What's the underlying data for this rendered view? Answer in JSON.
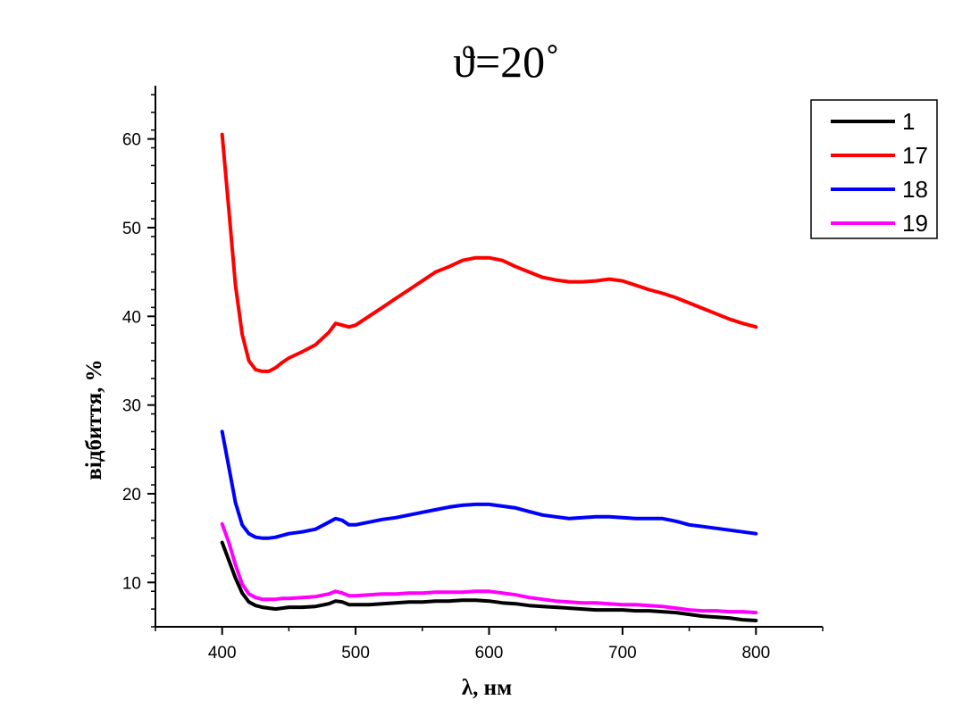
{
  "chart_data": {
    "type": "line",
    "title": "ϑ=20˚",
    "xlabel": "λ, нм",
    "ylabel": "відбиття, %",
    "xlim": [
      350,
      850
    ],
    "ylim": [
      5,
      66
    ],
    "x_ticks": [
      400,
      500,
      600,
      700,
      800
    ],
    "y_ticks": [
      10,
      20,
      30,
      40,
      50,
      60
    ],
    "grid": false,
    "legend_position": "top-right",
    "x": [
      400,
      405,
      410,
      415,
      420,
      425,
      430,
      435,
      440,
      445,
      450,
      460,
      470,
      480,
      485,
      490,
      495,
      500,
      510,
      520,
      530,
      540,
      550,
      560,
      570,
      580,
      590,
      600,
      610,
      620,
      630,
      640,
      650,
      660,
      670,
      680,
      690,
      700,
      710,
      720,
      730,
      740,
      750,
      760,
      770,
      780,
      790,
      800
    ],
    "series": [
      {
        "name": "1",
        "color": "#000000",
        "values": [
          14.5,
          12.5,
          10.5,
          8.8,
          7.8,
          7.4,
          7.2,
          7.1,
          7.0,
          7.1,
          7.2,
          7.2,
          7.3,
          7.6,
          7.9,
          7.8,
          7.5,
          7.5,
          7.5,
          7.6,
          7.7,
          7.8,
          7.8,
          7.9,
          7.9,
          8.0,
          8.0,
          7.9,
          7.7,
          7.6,
          7.4,
          7.3,
          7.2,
          7.1,
          7.0,
          6.9,
          6.9,
          6.9,
          6.8,
          6.8,
          6.7,
          6.6,
          6.4,
          6.2,
          6.1,
          6.0,
          5.8,
          5.7
        ]
      },
      {
        "name": "17",
        "color": "#ff0000",
        "values": [
          60.5,
          52.0,
          43.5,
          38.0,
          35.0,
          34.0,
          33.8,
          33.8,
          34.2,
          34.8,
          35.3,
          36.0,
          36.8,
          38.2,
          39.2,
          39.0,
          38.8,
          39.0,
          40.0,
          41.0,
          42.0,
          43.0,
          44.0,
          45.0,
          45.6,
          46.3,
          46.6,
          46.6,
          46.3,
          45.6,
          45.0,
          44.4,
          44.1,
          43.9,
          43.9,
          44.0,
          44.2,
          44.0,
          43.5,
          43.0,
          42.6,
          42.1,
          41.5,
          40.9,
          40.3,
          39.7,
          39.2,
          38.8
        ]
      },
      {
        "name": "18",
        "color": "#0000ff",
        "values": [
          27.0,
          23.0,
          19.0,
          16.5,
          15.5,
          15.1,
          15.0,
          15.0,
          15.1,
          15.3,
          15.5,
          15.7,
          16.0,
          16.8,
          17.2,
          17.0,
          16.5,
          16.5,
          16.8,
          17.1,
          17.3,
          17.6,
          17.9,
          18.2,
          18.5,
          18.7,
          18.8,
          18.8,
          18.6,
          18.4,
          18.0,
          17.6,
          17.4,
          17.2,
          17.3,
          17.4,
          17.4,
          17.3,
          17.2,
          17.2,
          17.2,
          16.9,
          16.5,
          16.3,
          16.1,
          15.9,
          15.7,
          15.5
        ]
      },
      {
        "name": "19",
        "color": "#ff00ff",
        "values": [
          16.6,
          14.5,
          12.0,
          9.8,
          8.7,
          8.3,
          8.1,
          8.1,
          8.1,
          8.2,
          8.2,
          8.3,
          8.4,
          8.7,
          9.0,
          8.8,
          8.5,
          8.5,
          8.6,
          8.7,
          8.7,
          8.8,
          8.8,
          8.9,
          8.9,
          8.9,
          9.0,
          9.0,
          8.8,
          8.6,
          8.3,
          8.1,
          7.9,
          7.8,
          7.7,
          7.7,
          7.6,
          7.5,
          7.5,
          7.4,
          7.3,
          7.1,
          6.9,
          6.8,
          6.8,
          6.7,
          6.7,
          6.6
        ]
      }
    ]
  }
}
